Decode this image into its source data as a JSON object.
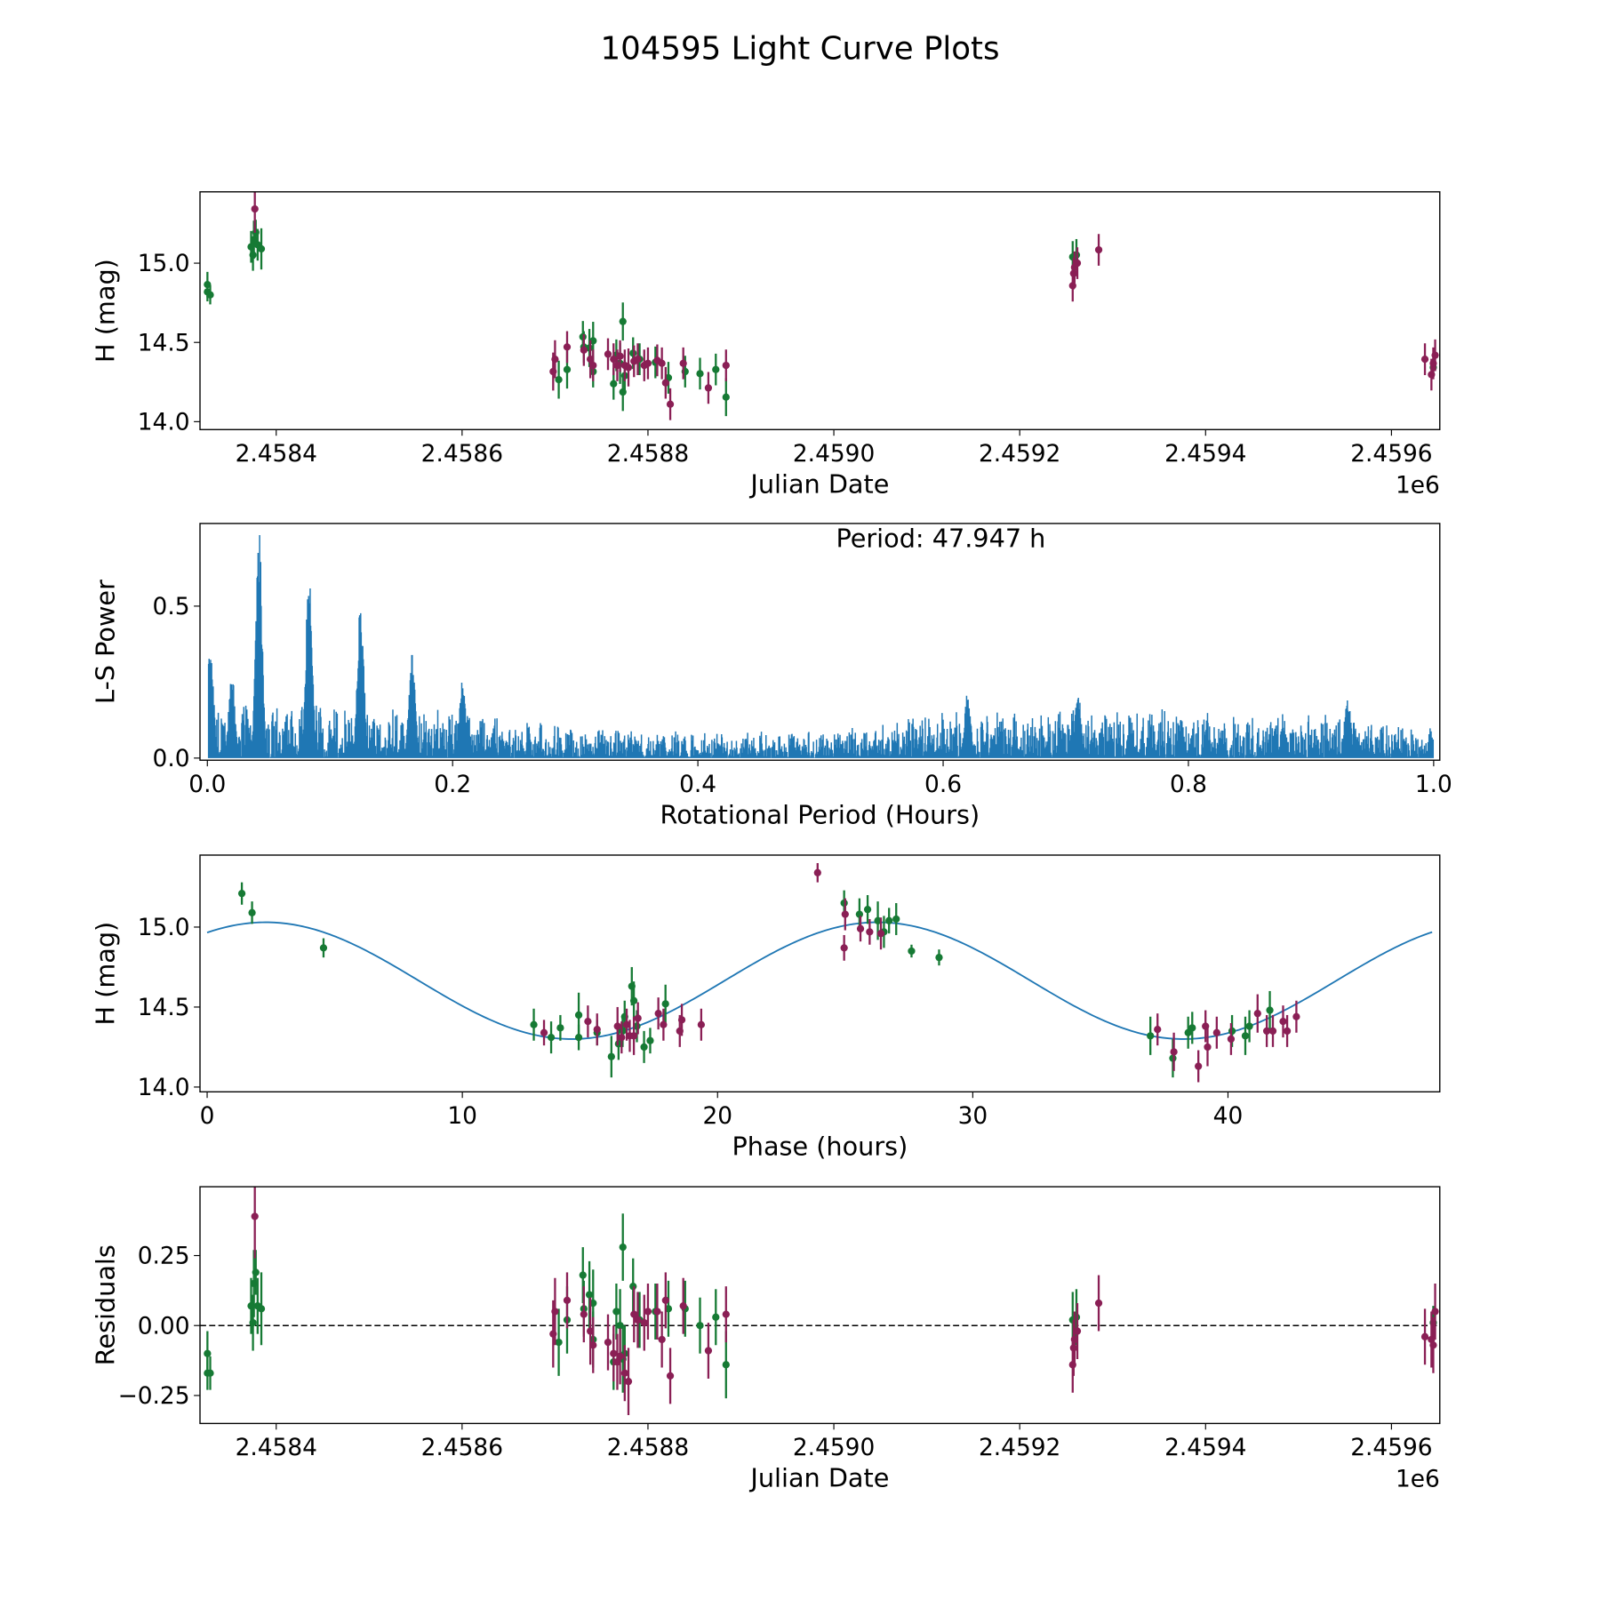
{
  "title": "104595 Light Curve Plots",
  "colors": {
    "band_a": "#167a34",
    "band_b": "#8a1f55",
    "line": "#1f77b4",
    "frame": "#000000"
  },
  "chart_data": [
    {
      "type": "scatter",
      "name": "light-curve",
      "xlabel": "Julian Date",
      "ylabel": "H (mag)",
      "x_offset_text": "1e6",
      "xlim": [
        2458318,
        2459652
      ],
      "ylim": [
        13.95,
        15.45
      ],
      "xticks": [
        2458400,
        2458600,
        2458800,
        2459000,
        2459200,
        2459400,
        2459600
      ],
      "xtick_labels": [
        "2.4584",
        "2.4586",
        "2.4588",
        "2.4590",
        "2.4592",
        "2.4594",
        "2.4596"
      ],
      "yticks": [
        14.0,
        14.5,
        15.0
      ],
      "ytick_labels": [
        "14.0",
        "14.5",
        "15.0"
      ],
      "series_fields": [
        "jd",
        "mag",
        "err",
        "residual"
      ],
      "series": [
        {
          "name": "green",
          "points": [
            [
              2458326,
              14.819,
              0.06,
              -0.17
            ],
            [
              2458326,
              14.865,
              0.08,
              -0.1
            ],
            [
              2458329,
              14.8,
              0.06,
              -0.17
            ],
            [
              2458373,
              15.103,
              0.1,
              0.07
            ],
            [
              2458375,
              15.052,
              0.1,
              0.01
            ],
            [
              2458376,
              15.148,
              0.12,
              0.15
            ],
            [
              2458378,
              15.194,
              0.08,
              0.19
            ],
            [
              2458380,
              15.116,
              0.1,
              0.07
            ],
            [
              2458384,
              15.09,
              0.13,
              0.06
            ],
            [
              2458704,
              14.265,
              0.12,
              -0.06
            ],
            [
              2458713,
              14.329,
              0.12,
              0.02
            ],
            [
              2458730,
              14.535,
              0.1,
              0.18
            ],
            [
              2458731,
              14.471,
              0.1,
              0.06
            ],
            [
              2458737,
              14.465,
              0.12,
              0.11
            ],
            [
              2458741,
              14.51,
              0.12,
              0.08
            ],
            [
              2458741,
              14.316,
              0.1,
              -0.05
            ],
            [
              2458763,
              14.239,
              0.1,
              -0.13
            ],
            [
              2458766,
              14.419,
              0.1,
              0.05
            ],
            [
              2458770,
              14.368,
              0.13,
              0.0
            ],
            [
              2458773,
              14.632,
              0.12,
              0.28
            ],
            [
              2458773,
              14.187,
              0.12,
              -0.12
            ],
            [
              2458775,
              14.29,
              0.1,
              -0.1
            ],
            [
              2458784,
              14.432,
              0.1,
              0.14
            ],
            [
              2458791,
              14.394,
              0.1,
              0.02
            ],
            [
              2458808,
              14.374,
              0.1,
              0.05
            ],
            [
              2458822,
              14.277,
              0.1,
              0.06
            ],
            [
              2458840,
              14.316,
              0.1,
              0.06
            ],
            [
              2458856,
              14.303,
              0.1,
              0.0
            ],
            [
              2458873,
              14.329,
              0.1,
              0.03
            ],
            [
              2458884,
              14.155,
              0.12,
              -0.14
            ],
            [
              2459257,
              15.039,
              0.1,
              0.02
            ],
            [
              2459261,
              15.052,
              0.1,
              0.03
            ],
            [
              2459645,
              14.342,
              0.06,
              0.01
            ]
          ]
        },
        {
          "name": "purple",
          "points": [
            [
              2458377,
              15.342,
              0.15,
              0.39
            ],
            [
              2458698,
              14.316,
              0.12,
              -0.03
            ],
            [
              2458700,
              14.394,
              0.12,
              0.05
            ],
            [
              2458713,
              14.471,
              0.1,
              0.09
            ],
            [
              2458731,
              14.452,
              0.1,
              0.04
            ],
            [
              2458738,
              14.394,
              0.12,
              -0.02
            ],
            [
              2458741,
              14.355,
              0.1,
              -0.07
            ],
            [
              2458757,
              14.426,
              0.1,
              -0.06
            ],
            [
              2458763,
              14.394,
              0.1,
              -0.1
            ],
            [
              2458767,
              14.355,
              0.1,
              -0.13
            ],
            [
              2458770,
              14.413,
              0.1,
              -0.11
            ],
            [
              2458775,
              14.355,
              0.1,
              -0.17
            ],
            [
              2458779,
              14.342,
              0.12,
              -0.2
            ],
            [
              2458785,
              14.381,
              0.1,
              0.04
            ],
            [
              2458789,
              14.394,
              0.1,
              0.02
            ],
            [
              2458796,
              14.355,
              0.1,
              0.01
            ],
            [
              2458800,
              14.368,
              0.1,
              0.05
            ],
            [
              2458810,
              14.387,
              0.1,
              0.05
            ],
            [
              2458815,
              14.368,
              0.1,
              -0.05
            ],
            [
              2458819,
              14.245,
              0.1,
              0.09
            ],
            [
              2458824,
              14.11,
              0.1,
              -0.18
            ],
            [
              2458838,
              14.368,
              0.1,
              0.07
            ],
            [
              2458865,
              14.213,
              0.1,
              -0.09
            ],
            [
              2458884,
              14.355,
              0.1,
              0.04
            ],
            [
              2459257,
              14.858,
              0.1,
              -0.14
            ],
            [
              2459258,
              14.935,
              0.1,
              -0.08
            ],
            [
              2459259,
              14.974,
              0.1,
              -0.05
            ],
            [
              2459262,
              15.0,
              0.1,
              -0.02
            ],
            [
              2459285,
              15.084,
              0.1,
              0.08
            ],
            [
              2459636,
              14.394,
              0.1,
              -0.04
            ],
            [
              2459643,
              14.297,
              0.1,
              -0.05
            ],
            [
              2459645,
              14.368,
              0.1,
              -0.07
            ],
            [
              2459647,
              14.419,
              0.1,
              0.05
            ]
          ]
        }
      ]
    },
    {
      "type": "line",
      "name": "periodogram",
      "xlabel": "Rotational Period (Hours)",
      "ylabel": "L-S Power",
      "annotation": "Period: 47.947 h",
      "xlim": [
        -0.006,
        1.005
      ],
      "ylim": [
        -0.007,
        0.772
      ],
      "xticks": [
        0.0,
        0.2,
        0.4,
        0.6,
        0.8,
        1.0
      ],
      "xtick_labels": [
        "0.0",
        "0.2",
        "0.4",
        "0.6",
        "0.8",
        "1.0"
      ],
      "yticks": [
        0.0,
        0.5
      ],
      "ytick_labels": [
        "0.0",
        "0.5"
      ],
      "peaks": [
        [
          0.0025,
          0.38
        ],
        [
          0.042,
          0.77
        ],
        [
          0.083,
          0.65
        ],
        [
          0.125,
          0.54
        ],
        [
          0.167,
          0.36
        ],
        [
          0.208,
          0.27
        ],
        [
          0.02,
          0.28
        ],
        [
          0.62,
          0.22
        ],
        [
          0.71,
          0.22
        ],
        [
          0.93,
          0.2
        ]
      ],
      "noise_envelope": [
        [
          0.0,
          0.2
        ],
        [
          0.2,
          0.16
        ],
        [
          0.3,
          0.1
        ],
        [
          0.5,
          0.09
        ],
        [
          0.6,
          0.16
        ],
        [
          0.75,
          0.17
        ],
        [
          0.9,
          0.15
        ],
        [
          1.0,
          0.1
        ]
      ]
    },
    {
      "type": "scatter",
      "name": "phased-curve",
      "xlabel": "Phase (hours)",
      "ylabel": "H (mag)",
      "xlim": [
        -0.28,
        48.3
      ],
      "ylim": [
        13.97,
        15.45
      ],
      "xticks": [
        0,
        10,
        20,
        30,
        40
      ],
      "xtick_labels": [
        "0",
        "10",
        "20",
        "30",
        "40"
      ],
      "yticks": [
        14.0,
        14.5,
        15.0
      ],
      "ytick_labels": [
        "14.0",
        "14.5",
        "15.0"
      ],
      "model": {
        "mean": 14.665,
        "amplitude": 0.365,
        "peak_phase": 2.3,
        "cycle_hours": 23.97,
        "range": [
          0,
          48
        ]
      },
      "series_fields": [
        "phase",
        "mag",
        "err"
      ],
      "series": [
        {
          "name": "green",
          "points": [
            [
              1.36,
              15.21,
              0.07
            ],
            [
              1.76,
              15.09,
              0.07
            ],
            [
              4.56,
              14.87,
              0.06
            ],
            [
              12.8,
              14.39,
              0.1
            ],
            [
              13.48,
              14.31,
              0.1
            ],
            [
              13.84,
              14.37,
              0.08
            ],
            [
              14.56,
              14.45,
              0.14
            ],
            [
              14.56,
              14.31,
              0.08
            ],
            [
              15.28,
              14.34,
              0.08
            ],
            [
              15.84,
              14.19,
              0.13
            ],
            [
              16.12,
              14.27,
              0.1
            ],
            [
              16.28,
              14.35,
              0.1
            ],
            [
              16.36,
              14.44,
              0.1
            ],
            [
              16.64,
              14.63,
              0.12
            ],
            [
              16.72,
              14.54,
              0.12
            ],
            [
              16.84,
              14.38,
              0.1
            ],
            [
              17.12,
              14.25,
              0.1
            ],
            [
              17.36,
              14.29,
              0.08
            ],
            [
              17.96,
              14.52,
              0.12
            ],
            [
              24.96,
              15.15,
              0.08
            ],
            [
              25.56,
              15.08,
              0.1
            ],
            [
              25.88,
              15.11,
              0.09
            ],
            [
              26.28,
              15.04,
              0.12
            ],
            [
              26.52,
              14.97,
              0.1
            ],
            [
              26.72,
              15.04,
              0.08
            ],
            [
              27.0,
              15.05,
              0.1
            ],
            [
              27.6,
              14.85,
              0.04
            ],
            [
              28.68,
              14.81,
              0.05
            ],
            [
              36.96,
              14.32,
              0.12
            ],
            [
              37.84,
              14.18,
              0.12
            ],
            [
              38.44,
              14.34,
              0.1
            ],
            [
              38.6,
              14.37,
              0.1
            ],
            [
              40.16,
              14.35,
              0.1
            ],
            [
              40.68,
              14.32,
              0.12
            ],
            [
              40.84,
              14.38,
              0.1
            ],
            [
              41.64,
              14.48,
              0.12
            ]
          ]
        },
        {
          "name": "purple",
          "points": [
            [
              13.2,
              14.34,
              0.08
            ],
            [
              14.92,
              14.41,
              0.1
            ],
            [
              15.28,
              14.36,
              0.1
            ],
            [
              16.08,
              14.38,
              0.12
            ],
            [
              16.24,
              14.31,
              0.1
            ],
            [
              16.44,
              14.39,
              0.1
            ],
            [
              16.56,
              14.32,
              0.1
            ],
            [
              16.72,
              14.32,
              0.12
            ],
            [
              16.88,
              14.43,
              0.1
            ],
            [
              17.68,
              14.46,
              0.1
            ],
            [
              17.88,
              14.39,
              0.1
            ],
            [
              18.52,
              14.35,
              0.1
            ],
            [
              18.6,
              14.42,
              0.1
            ],
            [
              19.36,
              14.39,
              0.1
            ],
            [
              23.92,
              15.34,
              0.06
            ],
            [
              24.96,
              14.87,
              0.08
            ],
            [
              25.0,
              15.08,
              0.1
            ],
            [
              25.6,
              14.99,
              0.08
            ],
            [
              25.96,
              14.97,
              0.08
            ],
            [
              26.4,
              14.96,
              0.1
            ],
            [
              37.24,
              14.36,
              0.1
            ],
            [
              37.88,
              14.22,
              0.12
            ],
            [
              38.84,
              14.13,
              0.1
            ],
            [
              39.12,
              14.38,
              0.1
            ],
            [
              39.2,
              14.25,
              0.12
            ],
            [
              39.56,
              14.34,
              0.1
            ],
            [
              40.12,
              14.3,
              0.1
            ],
            [
              41.16,
              14.46,
              0.12
            ],
            [
              41.52,
              14.35,
              0.1
            ],
            [
              41.76,
              14.35,
              0.1
            ],
            [
              42.16,
              14.41,
              0.1
            ],
            [
              42.32,
              14.35,
              0.1
            ],
            [
              42.68,
              14.44,
              0.1
            ]
          ]
        }
      ]
    },
    {
      "type": "scatter",
      "name": "residuals",
      "xlabel": "Julian Date",
      "ylabel": "Residuals",
      "x_offset_text": "1e6",
      "xlim": [
        2458318,
        2459652
      ],
      "ylim": [
        -0.35,
        0.496
      ],
      "xticks": [
        2458400,
        2458600,
        2458800,
        2459000,
        2459200,
        2459400,
        2459600
      ],
      "xtick_labels": [
        "2.4584",
        "2.4586",
        "2.4588",
        "2.4590",
        "2.4592",
        "2.4594",
        "2.4596"
      ],
      "yticks": [
        -0.25,
        0.0,
        0.25
      ],
      "ytick_labels": [
        "−0.25",
        "0.00",
        "0.25"
      ],
      "reference_line": 0.0,
      "source": "residual field of light-curve series"
    }
  ]
}
